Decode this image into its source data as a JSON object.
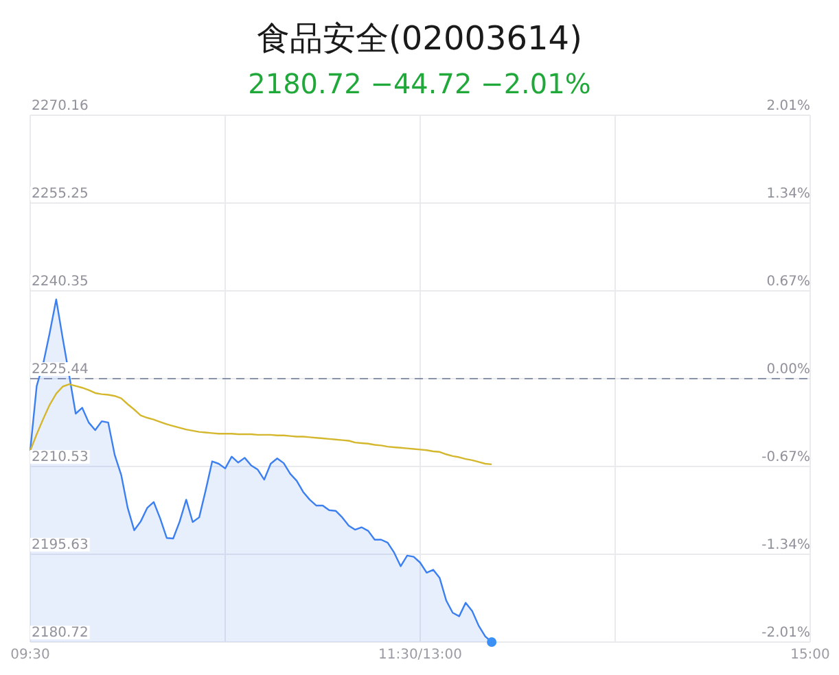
{
  "chart_data": {
    "type": "area",
    "title": "食品安全(02003614)",
    "subtitle": "2180.72 −44.72 −2.01%",
    "categories": [
      "09:30",
      null,
      null,
      null,
      null,
      null,
      null,
      null,
      null,
      null,
      null,
      null,
      null,
      null,
      null,
      null,
      null,
      null,
      null,
      null,
      null,
      null,
      null,
      null,
      null,
      null,
      null,
      null,
      null,
      null,
      null,
      null,
      null,
      null,
      null,
      null,
      null,
      null,
      null,
      null,
      null,
      null,
      null,
      null,
      null,
      null,
      null,
      null,
      null,
      null,
      null,
      null,
      null,
      null,
      null,
      null,
      null,
      null,
      null,
      null,
      "11:30/13:00",
      null,
      null,
      null,
      null,
      null,
      null,
      null,
      null,
      null,
      null,
      null,
      null,
      null,
      null,
      null,
      null,
      null,
      null,
      null,
      null,
      null,
      null,
      null,
      null,
      null,
      null,
      null,
      null,
      null,
      null,
      null,
      null,
      null,
      null,
      null,
      null,
      null,
      null,
      null,
      null,
      null,
      null,
      null,
      null,
      null,
      null,
      null,
      null,
      null,
      null,
      null,
      null,
      null,
      null,
      null,
      null,
      null,
      null,
      null,
      "15:00"
    ],
    "series": [
      {
        "color": "#3b7ff0",
        "values": [
          2213.2,
          2224.2,
          2228.0,
          2233.2,
          2238.9,
          2232.3,
          2226.0,
          2219.5,
          2220.5,
          2218.0,
          2216.7,
          2218.2,
          2218.0,
          2212.5,
          2209.1,
          2203.5,
          2199.7,
          2201.2,
          2203.5,
          2204.5,
          2201.7,
          2198.4,
          2198.3,
          2201.2,
          2204.9,
          2201.1,
          2201.9,
          2206.5,
          2211.4,
          2211.0,
          2210.2,
          2212.2,
          2211.2,
          2212.0,
          2210.7,
          2210.0,
          2208.3,
          2211.0,
          2211.9,
          2211.1,
          2209.3,
          2208.1,
          2206.2,
          2204.9,
          2203.9,
          2203.9,
          2203.1,
          2203.0,
          2201.9,
          2200.5,
          2199.8,
          2200.2,
          2199.6,
          2198.1,
          2198.1,
          2197.6,
          2195.9,
          2193.6,
          2195.4,
          2195.2,
          2194.2,
          2192.5,
          2193.0,
          2191.6,
          2187.8,
          2185.7,
          2185.1,
          2187.4,
          2186.0,
          2183.5,
          2181.7,
          2180.72,
          null,
          null,
          null,
          null,
          null,
          null,
          null,
          null,
          null,
          null,
          null,
          null,
          null,
          null,
          null,
          null,
          null,
          null,
          null,
          null,
          null,
          null,
          null,
          null,
          null,
          null,
          null,
          null,
          null,
          null,
          null,
          null,
          null,
          null,
          null,
          null,
          null,
          null,
          null,
          null,
          null,
          null,
          null,
          null,
          null,
          null,
          null,
          null,
          null
        ]
      },
      {
        "type": "line",
        "color": "#d4b72c",
        "values": [
          2213.2,
          2216.0,
          2218.6,
          2221.0,
          2222.9,
          2224.1,
          2224.5,
          2224.2,
          2223.9,
          2223.5,
          2223.0,
          2222.8,
          2222.7,
          2222.5,
          2222.1,
          2221.1,
          2220.2,
          2219.2,
          2218.8,
          2218.5,
          2218.1,
          2217.7,
          2217.4,
          2217.1,
          2216.8,
          2216.6,
          2216.4,
          2216.3,
          2216.2,
          2216.1,
          2216.1,
          2216.1,
          2216.0,
          2216.0,
          2216.0,
          2215.9,
          2215.9,
          2215.9,
          2215.8,
          2215.8,
          2215.7,
          2215.6,
          2215.6,
          2215.5,
          2215.4,
          2215.3,
          2215.2,
          2215.1,
          2215.0,
          2214.9,
          2214.6,
          2214.5,
          2214.4,
          2214.2,
          2214.1,
          2213.9,
          2213.8,
          2213.7,
          2213.6,
          2213.5,
          2213.4,
          2213.3,
          2213.1,
          2213.0,
          2212.6,
          2212.3,
          2212.1,
          2211.8,
          2211.6,
          2211.3,
          2211.0,
          2210.9,
          null,
          null,
          null,
          null,
          null,
          null,
          null,
          null,
          null,
          null,
          null,
          null,
          null,
          null,
          null,
          null,
          null,
          null,
          null,
          null,
          null,
          null,
          null,
          null,
          null,
          null,
          null,
          null,
          null,
          null,
          null,
          null,
          null,
          null,
          null,
          null,
          null,
          null,
          null,
          null,
          null,
          null,
          null,
          null,
          null,
          null,
          null,
          null,
          null
        ]
      },
      {
        "type": "scatter",
        "color": "#3b8ff5",
        "marker": "circle",
        "values": [
          null,
          null,
          null,
          null,
          null,
          null,
          null,
          null,
          null,
          null,
          null,
          null,
          null,
          null,
          null,
          null,
          null,
          null,
          null,
          null,
          null,
          null,
          null,
          null,
          null,
          null,
          null,
          null,
          null,
          null,
          null,
          null,
          null,
          null,
          null,
          null,
          null,
          null,
          null,
          null,
          null,
          null,
          null,
          null,
          null,
          null,
          null,
          null,
          null,
          null,
          null,
          null,
          null,
          null,
          null,
          null,
          null,
          null,
          null,
          null,
          null,
          null,
          null,
          null,
          null,
          null,
          null,
          null,
          null,
          null,
          null,
          2180.72,
          null,
          null,
          null,
          null,
          null,
          null,
          null,
          null,
          null,
          null,
          null,
          null,
          null,
          null,
          null,
          null,
          null,
          null,
          null,
          null,
          null,
          null,
          null,
          null,
          null,
          null,
          null,
          null,
          null,
          null,
          null,
          null,
          null,
          null,
          null,
          null,
          null,
          null,
          null,
          null,
          null,
          null,
          null,
          null,
          null,
          null,
          null,
          null,
          null
        ]
      }
    ],
    "ylim": [
      2180.72,
      2270.16
    ],
    "yticks": [
      2180.72,
      2195.63,
      2210.53,
      2225.44,
      2240.35,
      2255.25,
      2270.16
    ],
    "y2lim": [
      -2.01,
      2.01
    ],
    "y2ticks": [
      {
        "value": -2.01,
        "label": "-2.01%"
      },
      {
        "value": -1.34,
        "label": "-1.34%"
      },
      {
        "value": -0.67,
        "label": "-0.67%"
      },
      {
        "value": 0,
        "label": "0.00%"
      },
      {
        "value": 0.67,
        "label": "0.67%"
      },
      {
        "value": 1.34,
        "label": "1.34%"
      },
      {
        "value": 2.01,
        "label": "2.01%"
      }
    ],
    "ref_lines": [
      {
        "axis": "y",
        "value": 2225.44,
        "color": "#8a93ad",
        "line_style": "dashed"
      }
    ],
    "grid": true
  }
}
